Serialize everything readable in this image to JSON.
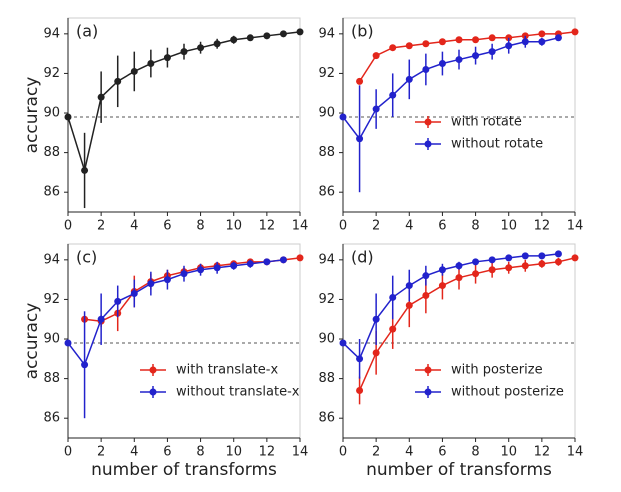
{
  "chart_data": [
    {
      "type": "line",
      "label": "(a)",
      "ylabel": "accuracy",
      "xlim": [
        0,
        14
      ],
      "ylim": [
        85,
        94.8
      ],
      "xticks": [
        0,
        2,
        4,
        6,
        8,
        10,
        12,
        14
      ],
      "yticks": [
        86,
        88,
        90,
        92,
        94
      ],
      "hline": 89.8,
      "series": [
        {
          "color": "#222222",
          "x": [
            0,
            1,
            2,
            3,
            4,
            5,
            6,
            7,
            8,
            9,
            10,
            11,
            12,
            13,
            14
          ],
          "values": [
            89.8,
            87.1,
            90.8,
            91.6,
            92.1,
            92.5,
            92.8,
            93.1,
            93.3,
            93.5,
            93.7,
            93.8,
            93.9,
            94.0,
            94.1
          ],
          "errors": [
            0,
            1.9,
            1.3,
            1.3,
            1.0,
            0.7,
            0.5,
            0.4,
            0.3,
            0.25,
            0.2,
            0.15,
            0.1,
            0.1,
            0.05
          ]
        }
      ]
    },
    {
      "type": "line",
      "label": "(b)",
      "xlim": [
        0,
        14
      ],
      "ylim": [
        85,
        94.8
      ],
      "xticks": [
        0,
        2,
        4,
        6,
        8,
        10,
        12,
        14
      ],
      "yticks": [
        86,
        88,
        90,
        92,
        94
      ],
      "hline": 89.8,
      "legend": "center right",
      "series": [
        {
          "name": "with rotate",
          "color": "#e3261b",
          "x": [
            1,
            2,
            3,
            4,
            5,
            6,
            7,
            8,
            9,
            10,
            11,
            12,
            13,
            14
          ],
          "values": [
            91.6,
            92.9,
            93.3,
            93.4,
            93.5,
            93.6,
            93.7,
            93.7,
            93.8,
            93.8,
            93.9,
            94.0,
            94.0,
            94.1
          ],
          "errors": [
            0.1,
            0.1,
            0.1,
            0.1,
            0.1,
            0.1,
            0.1,
            0.1,
            0.1,
            0.1,
            0.1,
            0.1,
            0.1,
            0.1
          ]
        },
        {
          "name": "without rotate",
          "color": "#2222cc",
          "x": [
            0,
            1,
            2,
            3,
            4,
            5,
            6,
            7,
            8,
            9,
            10,
            11,
            12,
            13
          ],
          "values": [
            89.8,
            88.7,
            90.2,
            90.9,
            91.7,
            92.2,
            92.5,
            92.7,
            92.9,
            93.1,
            93.4,
            93.6,
            93.6,
            93.8
          ],
          "errors": [
            0,
            2.7,
            1.0,
            1.1,
            1.0,
            0.8,
            0.6,
            0.5,
            0.45,
            0.4,
            0.4,
            0.3,
            0.2,
            0.1
          ]
        }
      ]
    },
    {
      "type": "line",
      "label": "(c)",
      "ylabel": "accuracy",
      "xlabel": "number of transforms",
      "xlim": [
        0,
        14
      ],
      "ylim": [
        85,
        94.8
      ],
      "xticks": [
        0,
        2,
        4,
        6,
        8,
        10,
        12,
        14
      ],
      "yticks": [
        86,
        88,
        90,
        92,
        94
      ],
      "hline": 89.8,
      "legend": "lower right",
      "series": [
        {
          "name": "with translate-x",
          "color": "#e3261b",
          "x": [
            1,
            2,
            3,
            4,
            5,
            6,
            7,
            8,
            9,
            10,
            11,
            12,
            13,
            14
          ],
          "values": [
            91.0,
            90.9,
            91.3,
            92.4,
            92.9,
            93.2,
            93.4,
            93.6,
            93.7,
            93.8,
            93.9,
            93.9,
            94.0,
            94.1
          ],
          "errors": [
            0.05,
            0.3,
            0.9,
            0.8,
            0.4,
            0.3,
            0.2,
            0.2,
            0.15,
            0.1,
            0.1,
            0.1,
            0.1,
            0.05
          ]
        },
        {
          "name": "without translate-x",
          "color": "#2222cc",
          "x": [
            0,
            1,
            2,
            3,
            4,
            5,
            6,
            7,
            8,
            9,
            10,
            11,
            12,
            13
          ],
          "values": [
            89.8,
            88.7,
            91.0,
            91.9,
            92.3,
            92.8,
            93.0,
            93.3,
            93.5,
            93.6,
            93.7,
            93.8,
            93.9,
            94.0
          ],
          "errors": [
            0,
            2.7,
            1.3,
            0.8,
            0.7,
            0.6,
            0.5,
            0.4,
            0.3,
            0.3,
            0.2,
            0.2,
            0.1,
            0.1
          ]
        }
      ]
    },
    {
      "type": "line",
      "label": "(d)",
      "xlabel": "number of transforms",
      "xlim": [
        0,
        14
      ],
      "ylim": [
        85,
        94.8
      ],
      "xticks": [
        0,
        2,
        4,
        6,
        8,
        10,
        12,
        14
      ],
      "yticks": [
        86,
        88,
        90,
        92,
        94
      ],
      "hline": 89.8,
      "legend": "lower right",
      "series": [
        {
          "name": "with posterize",
          "color": "#e3261b",
          "x": [
            1,
            2,
            3,
            4,
            5,
            6,
            7,
            8,
            9,
            10,
            11,
            12,
            13,
            14
          ],
          "values": [
            87.4,
            89.3,
            90.5,
            91.7,
            92.2,
            92.7,
            93.1,
            93.3,
            93.5,
            93.6,
            93.7,
            93.8,
            93.9,
            94.1
          ],
          "errors": [
            0.7,
            1.1,
            1.0,
            1.1,
            0.9,
            0.7,
            0.6,
            0.5,
            0.4,
            0.3,
            0.3,
            0.2,
            0.2,
            0.1
          ]
        },
        {
          "name": "without posterize",
          "color": "#2222cc",
          "x": [
            0,
            1,
            2,
            3,
            4,
            5,
            6,
            7,
            8,
            9,
            10,
            11,
            12,
            13
          ],
          "values": [
            89.8,
            89.0,
            91.0,
            92.1,
            92.7,
            93.2,
            93.5,
            93.7,
            93.9,
            94.0,
            94.1,
            94.2,
            94.2,
            94.3
          ],
          "errors": [
            0,
            1.0,
            1.3,
            1.1,
            0.8,
            0.5,
            0.3,
            0.2,
            0.15,
            0.1,
            0.1,
            0.1,
            0.1,
            0.1
          ]
        }
      ]
    }
  ]
}
